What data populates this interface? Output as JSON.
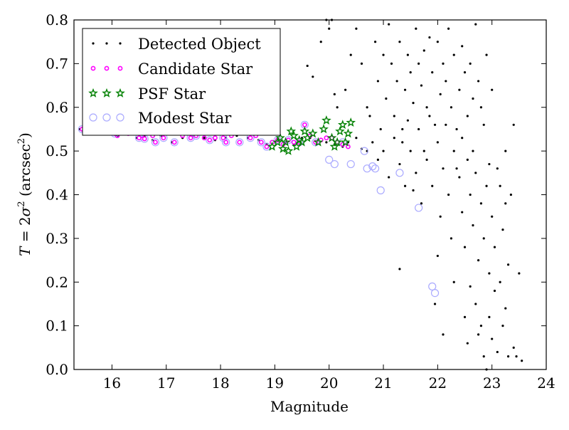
{
  "chart_data": {
    "type": "scatter",
    "title": "",
    "xlabel": "Magnitude",
    "ylabel": "T = 2σ² (arcsec²)",
    "ylabel_parts": {
      "T": "T",
      "eq": " = 2",
      "sigma": "σ",
      "sup": "2",
      "open": " (arcsec",
      "sup2": "2",
      "close": ")"
    },
    "xlim": [
      15.3,
      24
    ],
    "ylim": [
      0.0,
      0.8
    ],
    "xticks": [
      16,
      17,
      18,
      19,
      20,
      21,
      22,
      23,
      24
    ],
    "yticks": [
      0.0,
      0.1,
      0.2,
      0.3,
      0.4,
      0.5,
      0.6,
      0.7,
      0.8
    ],
    "xtick_labels": [
      "16",
      "17",
      "18",
      "19",
      "20",
      "21",
      "22",
      "23",
      "24"
    ],
    "ytick_labels": [
      "0.0",
      "0.1",
      "0.2",
      "0.3",
      "0.4",
      "0.5",
      "0.6",
      "0.7",
      "0.8"
    ],
    "grid": false,
    "legend_position": "top-left",
    "colors": {
      "detected": "#000000",
      "candidate": "#ff00ff",
      "psf": "#008000",
      "modest": "#aaaaff"
    },
    "series": [
      {
        "name": "Detected Object",
        "marker": "dot",
        "points": [
          [
            15.4,
            0.55
          ],
          [
            15.55,
            0.555
          ],
          [
            15.8,
            0.545
          ],
          [
            15.95,
            0.54
          ],
          [
            16.1,
            0.535
          ],
          [
            16.3,
            0.54
          ],
          [
            16.45,
            0.53
          ],
          [
            16.6,
            0.535
          ],
          [
            16.75,
            0.525
          ],
          [
            16.9,
            0.535
          ],
          [
            17.1,
            0.52
          ],
          [
            17.3,
            0.53
          ],
          [
            17.5,
            0.535
          ],
          [
            17.7,
            0.53
          ],
          [
            17.9,
            0.525
          ],
          [
            18.1,
            0.53
          ],
          [
            18.3,
            0.535
          ],
          [
            18.5,
            0.53
          ],
          [
            18.7,
            0.525
          ],
          [
            18.85,
            0.515
          ],
          [
            19.0,
            0.52
          ],
          [
            19.2,
            0.52
          ],
          [
            19.35,
            0.515
          ],
          [
            19.5,
            0.53
          ],
          [
            19.65,
            0.53
          ],
          [
            19.8,
            0.525
          ],
          [
            19.95,
            0.52
          ],
          [
            20.1,
            0.515
          ],
          [
            20.25,
            0.51
          ],
          [
            20.35,
            0.52
          ],
          [
            20.5,
            0.53
          ],
          [
            20.6,
            0.505
          ],
          [
            20.7,
            0.5
          ],
          [
            19.6,
            0.695
          ],
          [
            19.7,
            0.67
          ],
          [
            19.85,
            0.75
          ],
          [
            19.95,
            0.8
          ],
          [
            20.05,
            0.8
          ],
          [
            20.0,
            0.78
          ],
          [
            20.1,
            0.63
          ],
          [
            20.15,
            0.6
          ],
          [
            20.3,
            0.64
          ],
          [
            20.4,
            0.72
          ],
          [
            20.5,
            0.78
          ],
          [
            20.6,
            0.7
          ],
          [
            20.7,
            0.6
          ],
          [
            20.75,
            0.58
          ],
          [
            20.85,
            0.75
          ],
          [
            20.9,
            0.66
          ],
          [
            20.95,
            0.55
          ],
          [
            21.0,
            0.72
          ],
          [
            21.05,
            0.62
          ],
          [
            21.1,
            0.79
          ],
          [
            21.15,
            0.7
          ],
          [
            21.2,
            0.58
          ],
          [
            21.25,
            0.66
          ],
          [
            21.3,
            0.75
          ],
          [
            21.35,
            0.55
          ],
          [
            21.4,
            0.64
          ],
          [
            21.45,
            0.72
          ],
          [
            21.5,
            0.68
          ],
          [
            21.55,
            0.61
          ],
          [
            21.6,
            0.78
          ],
          [
            21.65,
            0.7
          ],
          [
            21.7,
            0.65
          ],
          [
            21.75,
            0.73
          ],
          [
            21.8,
            0.6
          ],
          [
            21.85,
            0.76
          ],
          [
            21.9,
            0.68
          ],
          [
            21.95,
            0.56
          ],
          [
            22.0,
            0.75
          ],
          [
            22.05,
            0.63
          ],
          [
            22.1,
            0.7
          ],
          [
            22.15,
            0.66
          ],
          [
            22.2,
            0.78
          ],
          [
            22.25,
            0.6
          ],
          [
            22.3,
            0.72
          ],
          [
            22.35,
            0.55
          ],
          [
            22.4,
            0.64
          ],
          [
            22.45,
            0.74
          ],
          [
            22.5,
            0.68
          ],
          [
            22.55,
            0.58
          ],
          [
            22.6,
            0.7
          ],
          [
            22.65,
            0.62
          ],
          [
            22.7,
            0.79
          ],
          [
            22.75,
            0.66
          ],
          [
            22.8,
            0.6
          ],
          [
            22.9,
            0.72
          ],
          [
            23.0,
            0.64
          ],
          [
            20.8,
            0.52
          ],
          [
            20.9,
            0.48
          ],
          [
            21.0,
            0.5
          ],
          [
            21.1,
            0.44
          ],
          [
            21.2,
            0.53
          ],
          [
            21.3,
            0.47
          ],
          [
            21.4,
            0.42
          ],
          [
            21.5,
            0.5
          ],
          [
            21.6,
            0.45
          ],
          [
            21.7,
            0.38
          ],
          [
            21.8,
            0.48
          ],
          [
            21.9,
            0.42
          ],
          [
            22.0,
            0.52
          ],
          [
            22.05,
            0.35
          ],
          [
            22.1,
            0.46
          ],
          [
            22.2,
            0.4
          ],
          [
            22.25,
            0.3
          ],
          [
            22.3,
            0.5
          ],
          [
            22.4,
            0.44
          ],
          [
            22.45,
            0.36
          ],
          [
            22.5,
            0.28
          ],
          [
            22.55,
            0.48
          ],
          [
            22.6,
            0.4
          ],
          [
            22.65,
            0.33
          ],
          [
            22.7,
            0.45
          ],
          [
            22.75,
            0.25
          ],
          [
            22.8,
            0.38
          ],
          [
            22.85,
            0.3
          ],
          [
            22.9,
            0.42
          ],
          [
            22.95,
            0.22
          ],
          [
            23.0,
            0.35
          ],
          [
            23.05,
            0.28
          ],
          [
            23.1,
            0.46
          ],
          [
            23.15,
            0.2
          ],
          [
            23.2,
            0.32
          ],
          [
            23.25,
            0.5
          ],
          [
            23.3,
            0.24
          ],
          [
            23.35,
            0.4
          ],
          [
            23.4,
            0.56
          ],
          [
            21.3,
            0.23
          ],
          [
            21.95,
            0.15
          ],
          [
            22.0,
            0.26
          ],
          [
            22.1,
            0.08
          ],
          [
            22.3,
            0.2
          ],
          [
            22.5,
            0.12
          ],
          [
            22.55,
            0.06
          ],
          [
            22.6,
            0.19
          ],
          [
            22.7,
            0.15
          ],
          [
            22.75,
            0.08
          ],
          [
            22.8,
            0.1
          ],
          [
            22.85,
            0.03
          ],
          [
            22.9,
            0.0
          ],
          [
            22.95,
            0.12
          ],
          [
            23.0,
            0.07
          ],
          [
            23.05,
            0.18
          ],
          [
            23.1,
            0.04
          ],
          [
            23.2,
            0.1
          ],
          [
            23.25,
            0.14
          ],
          [
            23.3,
            0.03
          ],
          [
            23.4,
            0.05
          ],
          [
            23.45,
            0.03
          ],
          [
            23.5,
            0.22
          ],
          [
            23.55,
            0.02
          ],
          [
            21.35,
            0.52
          ],
          [
            21.45,
            0.57
          ],
          [
            21.55,
            0.41
          ],
          [
            21.65,
            0.55
          ],
          [
            21.75,
            0.5
          ],
          [
            21.85,
            0.58
          ],
          [
            22.15,
            0.56
          ],
          [
            22.35,
            0.46
          ],
          [
            22.45,
            0.53
          ],
          [
            22.65,
            0.5
          ],
          [
            22.85,
            0.56
          ],
          [
            22.95,
            0.47
          ],
          [
            23.15,
            0.42
          ],
          [
            23.25,
            0.38
          ]
        ]
      },
      {
        "name": "Candidate Star",
        "marker": "small-circle",
        "points": [
          [
            15.45,
            0.55
          ],
          [
            15.55,
            0.56
          ],
          [
            15.95,
            0.545
          ],
          [
            16.05,
            0.54
          ],
          [
            16.1,
            0.535
          ],
          [
            16.3,
            0.54
          ],
          [
            16.5,
            0.53
          ],
          [
            16.55,
            0.535
          ],
          [
            16.6,
            0.528
          ],
          [
            16.75,
            0.535
          ],
          [
            16.8,
            0.52
          ],
          [
            16.95,
            0.53
          ],
          [
            17.15,
            0.52
          ],
          [
            17.3,
            0.535
          ],
          [
            17.45,
            0.53
          ],
          [
            17.55,
            0.535
          ],
          [
            17.7,
            0.53
          ],
          [
            17.8,
            0.525
          ],
          [
            17.9,
            0.53
          ],
          [
            18.05,
            0.53
          ],
          [
            18.1,
            0.52
          ],
          [
            18.2,
            0.535
          ],
          [
            18.35,
            0.52
          ],
          [
            18.55,
            0.53
          ],
          [
            18.65,
            0.535
          ],
          [
            18.75,
            0.52
          ],
          [
            18.85,
            0.51
          ],
          [
            18.95,
            0.52
          ],
          [
            19.05,
            0.525
          ],
          [
            19.15,
            0.515
          ],
          [
            19.25,
            0.525
          ],
          [
            19.35,
            0.52
          ],
          [
            19.45,
            0.52
          ],
          [
            19.55,
            0.56
          ],
          [
            19.65,
            0.535
          ],
          [
            19.75,
            0.52
          ],
          [
            19.85,
            0.525
          ],
          [
            19.95,
            0.53
          ],
          [
            20.05,
            0.53
          ],
          [
            20.15,
            0.52
          ],
          [
            20.25,
            0.515
          ],
          [
            20.35,
            0.51
          ]
        ]
      },
      {
        "name": "PSF Star",
        "marker": "star",
        "points": [
          [
            18.95,
            0.51
          ],
          [
            19.05,
            0.52
          ],
          [
            19.1,
            0.53
          ],
          [
            19.15,
            0.505
          ],
          [
            19.2,
            0.52
          ],
          [
            19.25,
            0.5
          ],
          [
            19.3,
            0.545
          ],
          [
            19.35,
            0.535
          ],
          [
            19.4,
            0.51
          ],
          [
            19.45,
            0.525
          ],
          [
            19.5,
            0.52
          ],
          [
            19.55,
            0.545
          ],
          [
            19.6,
            0.53
          ],
          [
            19.7,
            0.54
          ],
          [
            19.8,
            0.52
          ],
          [
            19.9,
            0.55
          ],
          [
            19.95,
            0.57
          ],
          [
            20.05,
            0.53
          ],
          [
            20.1,
            0.51
          ],
          [
            20.15,
            0.52
          ],
          [
            20.2,
            0.545
          ],
          [
            20.25,
            0.56
          ],
          [
            20.3,
            0.52
          ],
          [
            20.35,
            0.54
          ],
          [
            20.4,
            0.565
          ]
        ]
      },
      {
        "name": "Modest Star",
        "marker": "open-circle",
        "points": [
          [
            15.45,
            0.55
          ],
          [
            15.55,
            0.56
          ],
          [
            15.95,
            0.545
          ],
          [
            16.05,
            0.54
          ],
          [
            16.5,
            0.53
          ],
          [
            16.6,
            0.528
          ],
          [
            16.8,
            0.52
          ],
          [
            16.95,
            0.53
          ],
          [
            17.15,
            0.52
          ],
          [
            17.45,
            0.53
          ],
          [
            17.55,
            0.535
          ],
          [
            17.8,
            0.525
          ],
          [
            18.05,
            0.53
          ],
          [
            18.1,
            0.52
          ],
          [
            18.35,
            0.52
          ],
          [
            18.55,
            0.53
          ],
          [
            18.75,
            0.52
          ],
          [
            18.85,
            0.51
          ],
          [
            19.05,
            0.525
          ],
          [
            19.25,
            0.525
          ],
          [
            19.45,
            0.52
          ],
          [
            19.55,
            0.56
          ],
          [
            19.75,
            0.52
          ],
          [
            20.0,
            0.48
          ],
          [
            20.1,
            0.47
          ],
          [
            20.25,
            0.52
          ],
          [
            20.4,
            0.47
          ],
          [
            20.65,
            0.5
          ],
          [
            20.7,
            0.46
          ],
          [
            20.8,
            0.465
          ],
          [
            20.85,
            0.46
          ],
          [
            21.3,
            0.45
          ],
          [
            20.95,
            0.41
          ],
          [
            21.65,
            0.37
          ],
          [
            21.9,
            0.19
          ],
          [
            21.95,
            0.175
          ]
        ]
      }
    ]
  }
}
